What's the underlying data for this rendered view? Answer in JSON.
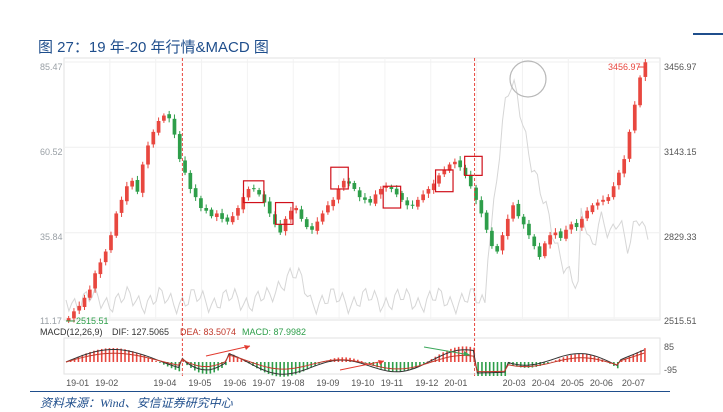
{
  "figure": {
    "title": "图 27：19 年-20 年行情&MACD 图",
    "source": "资料来源：Wind、安信证券研究中心"
  },
  "chart_data": {
    "type": "candlestick",
    "price_axis_right": [
      "3456.97",
      "3143.15",
      "2829.33",
      "2515.51"
    ],
    "price_axis_left": [
      "85.47",
      "60.52",
      "35.84",
      "11.17"
    ],
    "max_label": "3456.97",
    "min_label": "2515.51",
    "x_ticks": [
      "19-01",
      "19-02",
      "19-04",
      "19-05",
      "19-06",
      "19-07",
      "19-08",
      "19-09",
      "19-10",
      "19-11",
      "19-12",
      "20-01",
      "20-03",
      "20-04",
      "20-05",
      "20-06",
      "20-07"
    ],
    "macd_axis": [
      "85",
      "-95"
    ],
    "macd_labels": {
      "macd": "MACD(12,26,9)",
      "dif": "DIF: 127.5065",
      "dea": "DEA: 83.5074",
      "macd_val": "MACD: 87.9982"
    },
    "colors": {
      "up": "#e8473f",
      "down": "#2e9e4a",
      "dif": "#333333",
      "dea": "#c0392b",
      "box": "#d0101a",
      "arrow_red": "#e23a2f",
      "arrow_green": "#3aa75a",
      "divider": "#e8473f",
      "background_series": "#d6d6d6"
    },
    "close_series": [
      2515,
      2540,
      2560,
      2590,
      2620,
      2680,
      2720,
      2760,
      2820,
      2900,
      2950,
      3000,
      3020,
      2980,
      3080,
      3150,
      3200,
      3240,
      3260,
      3250,
      3190,
      3100,
      3050,
      2990,
      2960,
      2920,
      2910,
      2890,
      2900,
      2880,
      2870,
      2890,
      2920,
      2960,
      2990,
      2990,
      2970,
      2940,
      2900,
      2860,
      2830,
      2880,
      2910,
      2920,
      2880,
      2850,
      2840,
      2870,
      2900,
      2930,
      2950,
      2990,
      3020,
      3010,
      2990,
      2960,
      2950,
      2940,
      2970,
      2990,
      3000,
      2990,
      2970,
      2950,
      2930,
      2930,
      2950,
      2970,
      2990,
      3010,
      3040,
      3060,
      3080,
      3090,
      3070,
      3040,
      3000,
      2950,
      2900,
      2840,
      2780,
      2760,
      2820,
      2880,
      2930,
      2890,
      2860,
      2820,
      2780,
      2740,
      2790,
      2820,
      2830,
      2810,
      2840,
      2860,
      2850,
      2880,
      2910,
      2930,
      2940,
      2950,
      2960,
      3000,
      3050,
      3100,
      3200,
      3300,
      3400,
      3456
    ],
    "boxes": [
      {
        "from": 0.305,
        "to": 0.34,
        "hi": 3020,
        "lo": 2940
      },
      {
        "from": 0.36,
        "to": 0.39,
        "hi": 2940,
        "lo": 2860
      },
      {
        "from": 0.455,
        "to": 0.485,
        "hi": 3070,
        "lo": 2990
      },
      {
        "from": 0.545,
        "to": 0.575,
        "hi": 3000,
        "lo": 2920
      },
      {
        "from": 0.635,
        "to": 0.665,
        "hi": 3060,
        "lo": 2980
      },
      {
        "from": 0.685,
        "to": 0.715,
        "hi": 3110,
        "lo": 3040
      }
    ],
    "dividers": [
      0.2,
      0.702
    ],
    "highlight_circle": {
      "at": 0.77,
      "label": ""
    }
  }
}
